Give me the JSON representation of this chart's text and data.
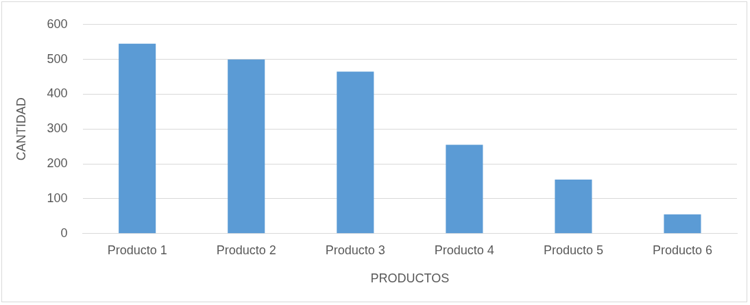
{
  "chart_data": {
    "type": "bar",
    "xlabel": "PRODUCTOS",
    "ylabel": "CANTIDAD",
    "categories": [
      "Producto 1",
      "Producto 2",
      "Producto 3",
      "Producto 4",
      "Producto 5",
      "Producto 6"
    ],
    "values": [
      545,
      500,
      465,
      255,
      155,
      55
    ],
    "color": "#5b9bd5",
    "ylim": [
      0,
      600
    ],
    "yticks": [
      0,
      100,
      200,
      300,
      400,
      500,
      600
    ],
    "grid": "y"
  }
}
